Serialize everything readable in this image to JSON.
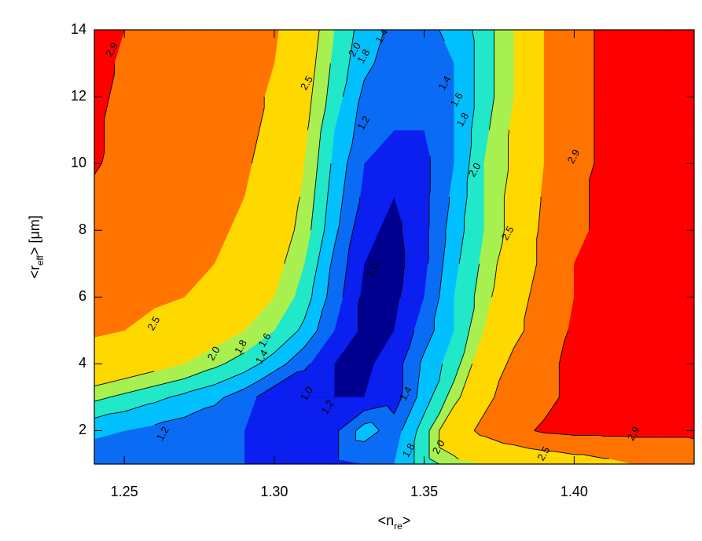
{
  "chart_data": {
    "type": "contourf",
    "x_label": [
      "<n",
      "re",
      ">"
    ],
    "y_label": [
      "<r",
      "eff",
      "> [μm]"
    ],
    "x": [
      1.24,
      1.25,
      1.26,
      1.27,
      1.28,
      1.29,
      1.3,
      1.31,
      1.32,
      1.33,
      1.34,
      1.35,
      1.36,
      1.37,
      1.38,
      1.39,
      1.4,
      1.41,
      1.42,
      1.43,
      1.44
    ],
    "y": [
      1,
      2,
      3,
      4,
      5,
      6,
      7,
      8,
      9,
      10,
      11,
      12,
      13,
      14
    ],
    "z": [
      [
        1.25,
        1.24,
        1.23,
        1.22,
        1.21,
        1.2,
        1.18,
        1.16,
        1.15,
        1.2,
        1.4,
        1.7,
        1.9,
        2.0,
        2.1,
        2.2,
        2.3,
        2.4,
        2.5,
        2.5,
        2.6
      ],
      [
        1.45,
        1.4,
        1.35,
        1.3,
        1.25,
        1.2,
        1.15,
        1.1,
        1.15,
        1.5,
        1.3,
        1.7,
        2.3,
        2.6,
        2.8,
        2.95,
        3.0,
        3.0,
        3.0,
        3.0,
        3.0
      ],
      [
        1.85,
        1.75,
        1.65,
        1.55,
        1.45,
        1.3,
        1.05,
        1.0,
        1.0,
        1.0,
        1.1,
        1.5,
        1.9,
        2.4,
        2.7,
        2.8,
        3.0,
        3.0,
        3.0,
        3.0,
        3.0
      ],
      [
        2.3,
        2.2,
        2.1,
        2.0,
        1.85,
        1.7,
        1.5,
        1.25,
        1.0,
        0.95,
        1.1,
        1.45,
        1.7,
        2.2,
        2.6,
        2.8,
        3.0,
        3.0,
        3.0,
        3.0,
        3.0
      ],
      [
        2.55,
        2.5,
        2.4,
        2.3,
        2.15,
        2.0,
        1.8,
        1.55,
        1.2,
        0.95,
        1.0,
        1.3,
        1.6,
        2.0,
        2.4,
        2.7,
        2.95,
        3.0,
        3.0,
        3.0,
        3.0
      ],
      [
        2.65,
        2.6,
        2.55,
        2.5,
        2.4,
        2.2,
        2.0,
        1.7,
        1.3,
        0.95,
        0.95,
        1.2,
        1.6,
        1.9,
        2.3,
        2.7,
        2.9,
        3.0,
        3.0,
        3.0,
        3.0
      ],
      [
        2.7,
        2.65,
        2.6,
        2.55,
        2.5,
        2.35,
        2.1,
        1.8,
        1.35,
        1.0,
        0.92,
        1.15,
        1.55,
        1.85,
        2.2,
        2.6,
        2.9,
        3.0,
        3.0,
        3.0,
        3.0
      ],
      [
        2.75,
        2.7,
        2.65,
        2.6,
        2.55,
        2.45,
        2.2,
        1.9,
        1.45,
        1.05,
        0.95,
        1.15,
        1.5,
        1.8,
        2.1,
        2.6,
        2.85,
        2.95,
        3.0,
        3.0,
        3.0
      ],
      [
        2.8,
        2.75,
        2.7,
        2.65,
        2.6,
        2.5,
        2.3,
        1.95,
        1.5,
        1.15,
        1.0,
        1.15,
        1.45,
        1.8,
        2.1,
        2.55,
        2.85,
        2.95,
        3.0,
        3.0,
        3.0
      ],
      [
        2.95,
        2.75,
        2.7,
        2.65,
        2.6,
        2.55,
        2.35,
        2.0,
        1.55,
        1.2,
        1.1,
        1.15,
        1.4,
        1.8,
        2.05,
        2.5,
        2.8,
        2.95,
        3.0,
        3.0,
        3.0
      ],
      [
        2.95,
        2.8,
        2.75,
        2.7,
        2.65,
        2.6,
        2.4,
        2.05,
        1.6,
        1.3,
        1.2,
        1.2,
        1.4,
        1.75,
        2.05,
        2.5,
        2.8,
        2.95,
        3.0,
        3.0,
        3.0
      ],
      [
        3.0,
        2.8,
        2.75,
        2.7,
        2.65,
        2.6,
        2.45,
        2.1,
        1.7,
        1.35,
        1.25,
        1.3,
        1.4,
        1.7,
        2.0,
        2.5,
        2.8,
        2.95,
        3.0,
        3.0,
        3.0
      ],
      [
        3.0,
        2.85,
        2.8,
        2.75,
        2.7,
        2.6,
        2.5,
        2.15,
        1.75,
        1.45,
        1.3,
        1.3,
        1.4,
        1.7,
        2.0,
        2.5,
        2.8,
        2.95,
        3.0,
        3.0,
        3.0
      ],
      [
        3.0,
        2.9,
        2.8,
        2.75,
        2.7,
        2.65,
        2.55,
        2.2,
        1.8,
        1.5,
        1.35,
        1.35,
        1.45,
        1.7,
        2.0,
        2.5,
        2.8,
        2.95,
        3.0,
        3.0,
        3.0
      ]
    ],
    "levels": [
      1.0,
      1.2,
      1.4,
      1.6,
      1.8,
      2.0,
      2.5,
      2.9
    ],
    "band_colors": [
      "#00008f",
      "#0a1ff0",
      "#0a6cf5",
      "#00c0ff",
      "#20e8c8",
      "#a8f050",
      "#ffd800",
      "#ff7400",
      "#ff0000"
    ],
    "contour_labels": [
      {
        "value": 2.9,
        "label": "2.9",
        "x": 1.246,
        "y": 13.4
      },
      {
        "value": 2.5,
        "label": "2.5",
        "x": 1.26,
        "y": 5.2
      },
      {
        "value": 2.5,
        "label": "2.5",
        "x": 1.311,
        "y": 12.4
      },
      {
        "value": 2.0,
        "label": "2.0",
        "x": 1.28,
        "y": 4.3
      },
      {
        "value": 1.8,
        "label": "1.8",
        "x": 1.289,
        "y": 4.5
      },
      {
        "value": 1.6,
        "label": "1.6",
        "x": 1.297,
        "y": 4.7
      },
      {
        "value": 1.4,
        "label": "1.4",
        "x": 1.296,
        "y": 4.2
      },
      {
        "value": 1.2,
        "label": "1.2",
        "x": 1.263,
        "y": 1.9
      },
      {
        "value": 1.2,
        "label": "1.2",
        "x": 1.318,
        "y": 2.7
      },
      {
        "value": 1.2,
        "label": "1.2",
        "x": 1.33,
        "y": 11.2
      },
      {
        "value": 1.0,
        "label": "1.0",
        "x": 1.311,
        "y": 3.1
      },
      {
        "value": 1.0,
        "label": "1.0",
        "x": 1.333,
        "y": 6.8
      },
      {
        "value": 1.4,
        "label": "1.4",
        "x": 1.344,
        "y": 3.1
      },
      {
        "value": 1.8,
        "label": "1.8",
        "x": 1.345,
        "y": 1.4
      },
      {
        "value": 2.0,
        "label": "2.0",
        "x": 1.355,
        "y": 1.5
      },
      {
        "value": 2.5,
        "label": "2.5",
        "x": 1.39,
        "y": 1.3
      },
      {
        "value": 2.9,
        "label": "2.9",
        "x": 1.42,
        "y": 1.9
      },
      {
        "value": 2.0,
        "label": "2.0",
        "x": 1.327,
        "y": 13.4
      },
      {
        "value": 1.8,
        "label": "1.8",
        "x": 1.33,
        "y": 13.2
      },
      {
        "value": 1.4,
        "label": "1.4",
        "x": 1.336,
        "y": 13.8
      },
      {
        "value": 1.4,
        "label": "1.4",
        "x": 1.357,
        "y": 12.4
      },
      {
        "value": 1.6,
        "label": "1.6",
        "x": 1.361,
        "y": 11.9
      },
      {
        "value": 1.8,
        "label": "1.8",
        "x": 1.363,
        "y": 11.3
      },
      {
        "value": 2.0,
        "label": "2.0",
        "x": 1.367,
        "y": 9.8
      },
      {
        "value": 2.5,
        "label": "2.5",
        "x": 1.378,
        "y": 7.9
      },
      {
        "value": 2.9,
        "label": "2.9",
        "x": 1.4,
        "y": 10.2
      }
    ],
    "xlim": [
      1.24,
      1.44
    ],
    "ylim": [
      1,
      14
    ],
    "xticks": [
      1.25,
      {
        "value": 1.3,
        "label": "1.30"
      },
      1.35,
      {
        "value": 1.4,
        "label": "1.40"
      }
    ],
    "yticks": [
      2,
      4,
      6,
      8,
      10,
      12,
      14
    ]
  }
}
